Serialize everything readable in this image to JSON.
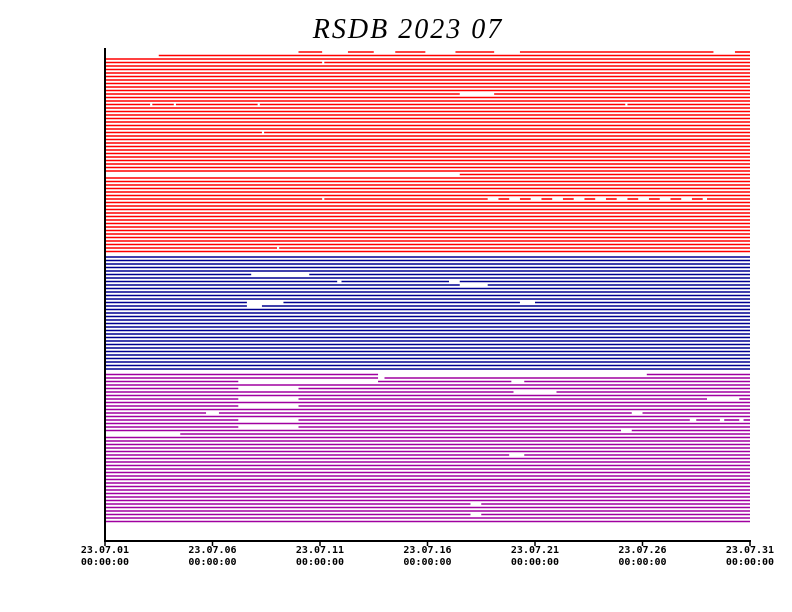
{
  "chart_data": {
    "type": "availability",
    "title": "RSDB  2023  07",
    "xlim": [
      0,
      30
    ],
    "xticks": [
      {
        "value": 0,
        "label": [
          "23.07.01",
          "00:00:00"
        ]
      },
      {
        "value": 5,
        "label": [
          "23.07.06",
          "00:00:00"
        ]
      },
      {
        "value": 10,
        "label": [
          "23.07.11",
          "00:00:00"
        ]
      },
      {
        "value": 15,
        "label": [
          "23.07.16",
          "00:00:00"
        ]
      },
      {
        "value": 20,
        "label": [
          "23.07.21",
          "00:00:00"
        ]
      },
      {
        "value": 25,
        "label": [
          "23.07.26",
          "00:00:00"
        ]
      },
      {
        "value": 30,
        "label": [
          "23.07.31",
          "00:00:00"
        ]
      }
    ],
    "groups": [
      {
        "color": "#ff0000",
        "rows": [
          [
            [
              9.0,
              10.1
            ],
            [
              11.3,
              12.5
            ],
            [
              13.5,
              14.9
            ],
            [
              16.3,
              18.1
            ],
            [
              19.3,
              28.3
            ],
            [
              29.3,
              30
            ]
          ],
          [
            [
              2.5,
              30
            ]
          ],
          [
            [
              0,
              30
            ]
          ],
          [
            [
              0,
              10.1
            ],
            [
              10.2,
              30
            ]
          ],
          [
            [
              0,
              30
            ]
          ],
          [
            [
              0,
              30
            ]
          ],
          [
            [
              0,
              30
            ]
          ],
          [
            [
              0,
              30
            ]
          ],
          [
            [
              0,
              30
            ]
          ],
          [
            [
              0,
              30
            ]
          ],
          [
            [
              0,
              30
            ]
          ],
          [
            [
              0,
              30
            ]
          ],
          [
            [
              0,
              16.5
            ],
            [
              18.1,
              30
            ]
          ],
          [
            [
              0,
              30
            ]
          ],
          [
            [
              0,
              30
            ]
          ],
          [
            [
              0,
              2.1
            ],
            [
              2.2,
              3.2
            ],
            [
              3.3,
              7.1
            ],
            [
              7.2,
              24.2
            ],
            [
              24.3,
              30
            ]
          ],
          [
            [
              0,
              30
            ]
          ],
          [
            [
              0,
              30
            ]
          ],
          [
            [
              0,
              30
            ]
          ],
          [
            [
              0,
              30
            ]
          ],
          [
            [
              0,
              30
            ]
          ],
          [
            [
              0,
              30
            ]
          ],
          [
            [
              0,
              30
            ]
          ],
          [
            [
              0,
              7.3
            ],
            [
              7.4,
              30
            ]
          ],
          [
            [
              0,
              30
            ]
          ],
          [
            [
              0,
              30
            ]
          ],
          [
            [
              0,
              30
            ]
          ],
          [
            [
              0,
              30
            ]
          ],
          [
            [
              0,
              30
            ]
          ],
          [
            [
              0,
              30
            ]
          ],
          [
            [
              0,
              30
            ]
          ],
          [
            [
              0,
              30
            ]
          ],
          [
            [
              0,
              30
            ]
          ],
          [
            [
              0,
              30
            ]
          ],
          [
            [
              0,
              30
            ]
          ],
          [
            [
              16.5,
              30
            ]
          ],
          [
            [
              0,
              30
            ]
          ],
          [
            [
              0,
              30
            ]
          ],
          [
            [
              0,
              30
            ]
          ],
          [
            [
              0,
              30
            ]
          ],
          [
            [
              0,
              30
            ]
          ],
          [
            [
              0,
              30
            ]
          ],
          [
            [
              0,
              10.1
            ],
            [
              10.2,
              17.8
            ],
            [
              18.3,
              18.8
            ],
            [
              19.3,
              19.8
            ],
            [
              20.3,
              20.8
            ],
            [
              21.3,
              21.8
            ],
            [
              22.3,
              22.8
            ],
            [
              23.3,
              23.8
            ],
            [
              24.3,
              24.8
            ],
            [
              25.3,
              25.8
            ],
            [
              26.3,
              26.8
            ],
            [
              27.3,
              27.8
            ],
            [
              28.0,
              30
            ]
          ],
          [
            [
              0,
              30
            ]
          ],
          [
            [
              0,
              30
            ]
          ],
          [
            [
              0,
              30
            ]
          ],
          [
            [
              0,
              30
            ]
          ],
          [
            [
              0,
              30
            ]
          ],
          [
            [
              0,
              30
            ]
          ],
          [
            [
              0,
              30
            ]
          ],
          [
            [
              0,
              30
            ]
          ],
          [
            [
              0,
              30
            ]
          ],
          [
            [
              0,
              30
            ]
          ],
          [
            [
              0,
              30
            ]
          ],
          [
            [
              0,
              30
            ]
          ],
          [
            [
              0,
              30
            ]
          ],
          [
            [
              0,
              8.0
            ],
            [
              8.1,
              30
            ]
          ],
          [
            [
              0,
              30
            ]
          ]
        ]
      },
      {
        "color": "#000090",
        "rows": [
          [
            [
              0,
              30
            ]
          ],
          [
            [
              0,
              30
            ]
          ],
          [
            [
              0,
              30
            ]
          ],
          [
            [
              0,
              30
            ]
          ],
          [
            [
              0,
              30
            ]
          ],
          [
            [
              0,
              6.8
            ],
            [
              9.5,
              30
            ]
          ],
          [
            [
              0,
              30
            ]
          ],
          [
            [
              0,
              10.8
            ],
            [
              11.0,
              16.0
            ],
            [
              16.5,
              30
            ]
          ],
          [
            [
              0,
              16.5
            ],
            [
              17.8,
              30
            ]
          ],
          [
            [
              0,
              30
            ]
          ],
          [
            [
              0,
              30
            ]
          ],
          [
            [
              0,
              30
            ]
          ],
          [
            [
              0,
              30
            ]
          ],
          [
            [
              0,
              6.6
            ],
            [
              8.3,
              19.3
            ],
            [
              20.0,
              30
            ]
          ],
          [
            [
              0,
              6.6
            ],
            [
              7.3,
              30
            ]
          ],
          [
            [
              0,
              30
            ]
          ],
          [
            [
              0,
              30
            ]
          ],
          [
            [
              0,
              30
            ]
          ],
          [
            [
              0,
              30
            ]
          ],
          [
            [
              0,
              30
            ]
          ],
          [
            [
              0,
              30
            ]
          ],
          [
            [
              0,
              30
            ]
          ],
          [
            [
              0,
              30
            ]
          ],
          [
            [
              0,
              30
            ]
          ],
          [
            [
              0,
              30
            ]
          ],
          [
            [
              0,
              30
            ]
          ],
          [
            [
              0,
              30
            ]
          ],
          [
            [
              0,
              30
            ]
          ],
          [
            [
              0,
              30
            ]
          ],
          [
            [
              0,
              30
            ]
          ],
          [
            [
              0,
              30
            ]
          ],
          [
            [
              0,
              30
            ]
          ],
          [
            [
              0,
              30
            ]
          ]
        ]
      },
      {
        "color": "#a000a0",
        "rows": [
          [
            [
              0,
              12.7
            ],
            [
              25.2,
              30
            ]
          ],
          [
            [
              0,
              12.7
            ],
            [
              13.0,
              30
            ]
          ],
          [
            [
              0,
              6.2
            ],
            [
              12.7,
              18.9
            ],
            [
              19.5,
              30
            ]
          ],
          [
            [
              0,
              30
            ]
          ],
          [
            [
              0,
              6.2
            ],
            [
              9.0,
              30
            ]
          ],
          [
            [
              0,
              19.0
            ],
            [
              21.0,
              30
            ]
          ],
          [
            [
              0,
              30
            ]
          ],
          [
            [
              0,
              6.2
            ],
            [
              9.0,
              28.0
            ],
            [
              29.5,
              30
            ]
          ],
          [
            [
              0,
              30
            ]
          ],
          [
            [
              0,
              6.2
            ],
            [
              9.0,
              30
            ]
          ],
          [
            [
              0,
              30
            ]
          ],
          [
            [
              0,
              4.7
            ],
            [
              5.3,
              24.5
            ],
            [
              25.0,
              30
            ]
          ],
          [
            [
              0,
              30
            ]
          ],
          [
            [
              0,
              6.2
            ],
            [
              9.0,
              27.2
            ],
            [
              27.5,
              28.6
            ],
            [
              28.8,
              29.5
            ],
            [
              29.7,
              30
            ]
          ],
          [
            [
              0,
              30
            ]
          ],
          [
            [
              0,
              6.2
            ],
            [
              9.0,
              30
            ]
          ],
          [
            [
              0,
              24.0
            ],
            [
              24.5,
              30
            ]
          ],
          [
            [
              3.5,
              30
            ]
          ],
          [
            [
              0,
              30
            ]
          ],
          [
            [
              0,
              30
            ]
          ],
          [
            [
              0,
              30
            ]
          ],
          [
            [
              0,
              30
            ]
          ],
          [
            [
              0,
              30
            ]
          ],
          [
            [
              0,
              18.8
            ],
            [
              19.5,
              30
            ]
          ],
          [
            [
              0,
              30
            ]
          ],
          [
            [
              0,
              30
            ]
          ],
          [
            [
              0,
              30
            ]
          ],
          [
            [
              0,
              30
            ]
          ],
          [
            [
              0,
              30
            ]
          ],
          [
            [
              0,
              30
            ]
          ],
          [
            [
              0,
              30
            ]
          ],
          [
            [
              0,
              30
            ]
          ],
          [
            [
              0,
              30
            ]
          ],
          [
            [
              0,
              30
            ]
          ],
          [
            [
              0,
              30
            ]
          ],
          [
            [
              0,
              30
            ]
          ],
          [
            [
              0,
              30
            ]
          ],
          [
            [
              0,
              17.0
            ],
            [
              17.5,
              30
            ]
          ],
          [
            [
              0,
              30
            ]
          ],
          [
            [
              0,
              30
            ]
          ],
          [
            [
              0,
              17.0
            ],
            [
              17.5,
              30
            ]
          ],
          [
            [
              0,
              30
            ]
          ],
          [
            [
              0,
              30
            ]
          ]
        ]
      }
    ]
  }
}
